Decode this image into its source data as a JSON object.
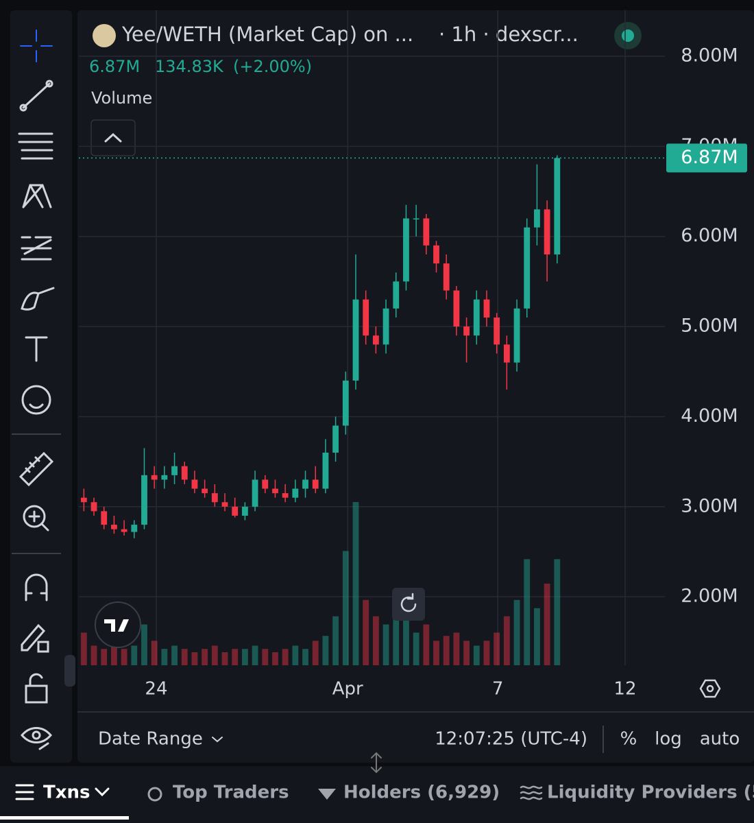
{
  "header": {
    "title": "Yee/WETH (Market Cap) on ...",
    "interval": "· 1h · dexscr...",
    "price": "6.87M",
    "change": "134.83K",
    "change_pct": "(+2.00%)",
    "indicator": "Volume"
  },
  "chart_data": {
    "type": "candlestick",
    "open": [
      3.1,
      3.05,
      2.95,
      2.8,
      2.75,
      2.72,
      2.8,
      3.35,
      3.3,
      3.35,
      3.45,
      3.3,
      3.2,
      3.15,
      3.05,
      3.0,
      2.9,
      3.0,
      3.3,
      3.2,
      3.15,
      3.1,
      3.2,
      3.3,
      3.2,
      3.6,
      3.9,
      4.4,
      5.3,
      4.9,
      4.8,
      5.2,
      5.5,
      6.2,
      6.2,
      5.9,
      5.7,
      5.4,
      5.0,
      4.9,
      5.3,
      5.1,
      4.8,
      4.6,
      5.2,
      6.1,
      6.3,
      5.8
    ],
    "high": [
      3.2,
      3.1,
      3.0,
      2.9,
      2.85,
      2.85,
      3.65,
      3.45,
      3.45,
      3.6,
      3.5,
      3.4,
      3.3,
      3.25,
      3.15,
      3.1,
      3.05,
      3.4,
      3.35,
      3.3,
      3.25,
      3.3,
      3.4,
      3.45,
      3.75,
      4.0,
      4.5,
      5.8,
      5.4,
      5.0,
      5.3,
      5.6,
      6.35,
      6.35,
      6.25,
      5.95,
      5.8,
      5.45,
      5.1,
      5.4,
      5.4,
      5.15,
      4.9,
      5.3,
      6.2,
      6.8,
      6.4,
      6.9
    ],
    "low": [
      2.95,
      2.9,
      2.75,
      2.7,
      2.68,
      2.65,
      2.75,
      3.2,
      3.2,
      3.25,
      3.25,
      3.15,
      3.1,
      3.0,
      2.95,
      2.88,
      2.85,
      2.95,
      3.15,
      3.1,
      3.05,
      3.05,
      3.1,
      3.15,
      3.15,
      3.5,
      3.8,
      4.3,
      4.8,
      4.7,
      4.7,
      5.1,
      5.4,
      6.0,
      5.8,
      5.6,
      5.3,
      4.9,
      4.6,
      4.8,
      5.0,
      4.7,
      4.3,
      4.5,
      5.1,
      5.9,
      5.5,
      5.7
    ],
    "close": [
      3.05,
      2.95,
      2.8,
      2.75,
      2.72,
      2.8,
      3.35,
      3.3,
      3.35,
      3.45,
      3.3,
      3.2,
      3.15,
      3.05,
      3.0,
      2.9,
      3.0,
      3.3,
      3.2,
      3.15,
      3.1,
      3.2,
      3.3,
      3.2,
      3.6,
      3.9,
      4.4,
      5.3,
      4.9,
      4.8,
      5.2,
      5.5,
      6.2,
      6.2,
      5.9,
      5.7,
      5.4,
      5.0,
      4.9,
      5.3,
      5.1,
      4.8,
      4.6,
      5.2,
      6.1,
      6.3,
      5.8,
      6.87
    ],
    "volume": [
      20,
      12,
      10,
      15,
      10,
      12,
      25,
      15,
      10,
      12,
      10,
      8,
      10,
      12,
      8,
      10,
      10,
      12,
      10,
      8,
      10,
      12,
      10,
      15,
      18,
      30,
      70,
      100,
      40,
      30,
      25,
      45,
      35,
      20,
      25,
      15,
      18,
      20,
      15,
      12,
      15,
      20,
      30,
      40,
      65,
      35,
      50,
      65
    ],
    "volume_lim": [
      0,
      100
    ],
    "up_color": "#22ab94",
    "down_color": "#f23645",
    "ylim": [
      1.24,
      8.51
    ],
    "yticks": [
      {
        "value": 2,
        "label": "2.00M"
      },
      {
        "value": 3,
        "label": "3.00M"
      },
      {
        "value": 4,
        "label": "4.00M"
      },
      {
        "value": 5,
        "label": "5.00M"
      },
      {
        "value": 6,
        "label": "6.00M"
      },
      {
        "value": 7,
        "label": "7.00M"
      },
      {
        "value": 8,
        "label": "8.00M"
      }
    ],
    "xlim": [
      -0.5,
      57.7
    ],
    "xticks": [
      {
        "value": 7.19,
        "label": "24"
      },
      {
        "value": 26.2,
        "label": "Apr"
      },
      {
        "value": 41.1,
        "label": "7"
      },
      {
        "value": 53.75,
        "label": "12"
      }
    ],
    "last_price": {
      "value": 6.87,
      "label": "6.87M"
    },
    "grid": true
  },
  "footer": {
    "date_range": "Date Range",
    "time": "12:07:25 (UTC-4)",
    "percent": "%",
    "log": "log",
    "auto": "auto"
  },
  "tabs": [
    "Txns",
    "Top Traders",
    "Holders (6,929)",
    "Liquidity Providers (5"
  ]
}
